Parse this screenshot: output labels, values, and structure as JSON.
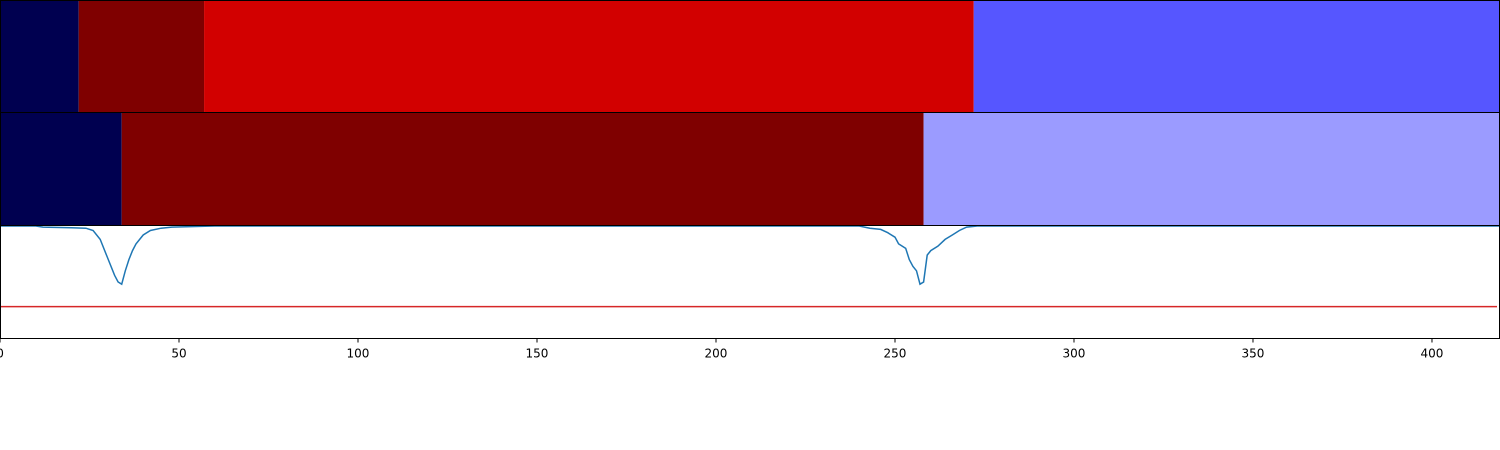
{
  "chart_data": {
    "type": "line",
    "xlim": [
      0,
      419
    ],
    "x_ticks": [
      0,
      50,
      100,
      150,
      200,
      250,
      300,
      350,
      400
    ],
    "grid": false,
    "segment_tracks": [
      {
        "segments": [
          {
            "start": 0,
            "end": 22,
            "color": "#000050"
          },
          {
            "start": 22,
            "end": 57,
            "color": "#7f0000"
          },
          {
            "start": 57,
            "end": 272,
            "color": "#d20000"
          },
          {
            "start": 272,
            "end": 419,
            "color": "#5656ff"
          }
        ]
      },
      {
        "segments": [
          {
            "start": 0,
            "end": 34,
            "color": "#000050"
          },
          {
            "start": 34,
            "end": 258,
            "color": "#7f0000"
          },
          {
            "start": 258,
            "end": 419,
            "color": "#9b9bff"
          }
        ]
      }
    ],
    "signal": {
      "color": "#1f77b4",
      "ylim": [
        -0.5,
        0.0
      ],
      "points": [
        [
          0,
          0.0
        ],
        [
          10,
          0.0
        ],
        [
          12,
          -0.005
        ],
        [
          20,
          -0.008
        ],
        [
          24,
          -0.01
        ],
        [
          26,
          -0.02
        ],
        [
          28,
          -0.06
        ],
        [
          30,
          -0.14
        ],
        [
          32,
          -0.22
        ],
        [
          33,
          -0.25
        ],
        [
          34,
          -0.26
        ],
        [
          35,
          -0.2
        ],
        [
          36,
          -0.15
        ],
        [
          37,
          -0.11
        ],
        [
          38,
          -0.08
        ],
        [
          40,
          -0.04
        ],
        [
          42,
          -0.02
        ],
        [
          45,
          -0.01
        ],
        [
          48,
          -0.005
        ],
        [
          60,
          0.0
        ],
        [
          240,
          0.0
        ],
        [
          243,
          -0.01
        ],
        [
          246,
          -0.015
        ],
        [
          248,
          -0.03
        ],
        [
          250,
          -0.05
        ],
        [
          251,
          -0.08
        ],
        [
          253,
          -0.1
        ],
        [
          254,
          -0.15
        ],
        [
          255,
          -0.18
        ],
        [
          256,
          -0.2
        ],
        [
          257,
          -0.26
        ],
        [
          258,
          -0.25
        ],
        [
          259,
          -0.13
        ],
        [
          260,
          -0.11
        ],
        [
          262,
          -0.09
        ],
        [
          264,
          -0.06
        ],
        [
          266,
          -0.04
        ],
        [
          268,
          -0.02
        ],
        [
          270,
          -0.005
        ],
        [
          273,
          0.0
        ],
        [
          419,
          0.0
        ]
      ]
    },
    "threshold": {
      "color": "#d62728",
      "value": -0.36
    }
  }
}
